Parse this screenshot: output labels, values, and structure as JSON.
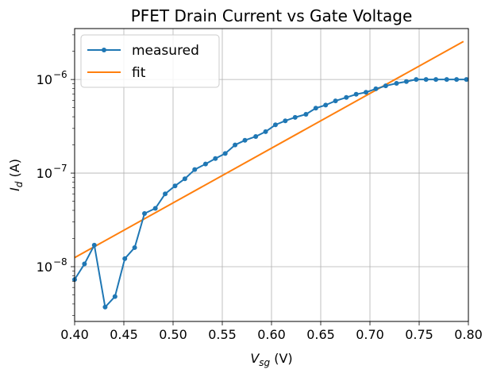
{
  "chart_data": {
    "type": "line",
    "title": "PFET Drain Current vs Gate Voltage",
    "xlabel": {
      "main": "V",
      "sub": "sg",
      "unit": " (V)"
    },
    "ylabel": {
      "main": "I",
      "sub": "d",
      "unit": " (A)"
    },
    "xlim": [
      0.4,
      0.8
    ],
    "ylim": [
      2.6e-09,
      3.5e-06
    ],
    "yscale": "log",
    "grid": true,
    "legend_position": "top-left",
    "x_ticks": [
      {
        "value": 0.4,
        "label": "0.40"
      },
      {
        "value": 0.45,
        "label": "0.45"
      },
      {
        "value": 0.5,
        "label": "0.50"
      },
      {
        "value": 0.55,
        "label": "0.55"
      },
      {
        "value": 0.6,
        "label": "0.60"
      },
      {
        "value": 0.65,
        "label": "0.65"
      },
      {
        "value": 0.7,
        "label": "0.70"
      },
      {
        "value": 0.75,
        "label": "0.75"
      },
      {
        "value": 0.8,
        "label": "0.80"
      }
    ],
    "y_ticks": [
      {
        "value": 1e-08,
        "base": "10",
        "exp": "−8"
      },
      {
        "value": 1e-07,
        "base": "10",
        "exp": "−7"
      },
      {
        "value": 1e-06,
        "base": "10",
        "exp": "−6"
      }
    ],
    "series": [
      {
        "name": "measured",
        "color": "#1f77b4",
        "marker": "circle",
        "x": [
          0.4,
          0.41,
          0.42,
          0.431,
          0.441,
          0.451,
          0.461,
          0.471,
          0.482,
          0.492,
          0.502,
          0.512,
          0.522,
          0.533,
          0.543,
          0.553,
          0.563,
          0.573,
          0.584,
          0.594,
          0.604,
          0.614,
          0.624,
          0.635,
          0.645,
          0.655,
          0.665,
          0.676,
          0.686,
          0.696,
          0.706,
          0.716,
          0.727,
          0.737,
          0.747,
          0.757,
          0.767,
          0.778,
          0.788,
          0.798
        ],
        "y": [
          7.3e-09,
          1.07e-08,
          1.7e-08,
          3.7e-09,
          4.8e-09,
          1.22e-08,
          1.6e-08,
          3.7e-08,
          4.2e-08,
          6e-08,
          7.3e-08,
          8.7e-08,
          1.09e-07,
          1.25e-07,
          1.43e-07,
          1.62e-07,
          2e-07,
          2.24e-07,
          2.46e-07,
          2.77e-07,
          3.28e-07,
          3.62e-07,
          3.94e-07,
          4.25e-07,
          4.94e-07,
          5.33e-07,
          5.91e-07,
          6.43e-07,
          6.95e-07,
          7.3e-07,
          7.95e-07,
          8.55e-07,
          9.1e-07,
          9.5e-07,
          1e-06,
          1e-06,
          1e-06,
          1e-06,
          1e-06,
          1e-06
        ]
      },
      {
        "name": "fit",
        "color": "#ff7f0e",
        "marker": "none",
        "x": [
          0.4,
          0.795
        ],
        "y": [
          1.25e-08,
          2.55e-06
        ]
      }
    ]
  }
}
